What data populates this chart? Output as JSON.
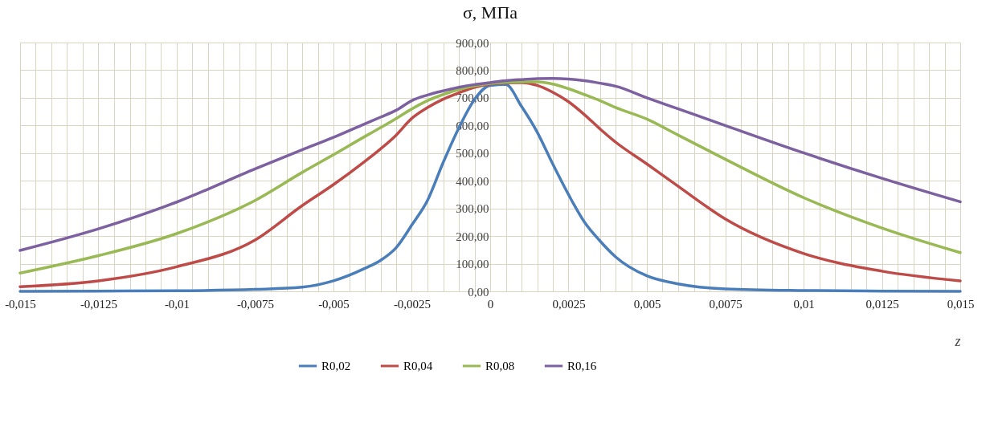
{
  "chart_data": {
    "type": "line",
    "title": "σ, МПа",
    "xlabel": "z",
    "xlim": [
      -0.015,
      0.015
    ],
    "ylim": [
      0,
      900
    ],
    "xticks": [
      {
        "value": -0.015,
        "label": "-0,015"
      },
      {
        "value": -0.0145,
        "label": null
      },
      {
        "value": -0.014,
        "label": null
      },
      {
        "value": -0.0135,
        "label": null
      },
      {
        "value": -0.013,
        "label": null
      },
      {
        "value": -0.0125,
        "label": "-0,0125"
      },
      {
        "value": -0.012,
        "label": null
      },
      {
        "value": -0.0115,
        "label": null
      },
      {
        "value": -0.011,
        "label": null
      },
      {
        "value": -0.0105,
        "label": null
      },
      {
        "value": -0.01,
        "label": "-0,01"
      },
      {
        "value": -0.0095,
        "label": null
      },
      {
        "value": -0.009,
        "label": null
      },
      {
        "value": -0.0085,
        "label": null
      },
      {
        "value": -0.008,
        "label": null
      },
      {
        "value": -0.0075,
        "label": "-0,0075"
      },
      {
        "value": -0.007,
        "label": null
      },
      {
        "value": -0.0065,
        "label": null
      },
      {
        "value": -0.006,
        "label": null
      },
      {
        "value": -0.0055,
        "label": null
      },
      {
        "value": -0.005,
        "label": "-0,005"
      },
      {
        "value": -0.0045,
        "label": null
      },
      {
        "value": -0.004,
        "label": null
      },
      {
        "value": -0.0035,
        "label": null
      },
      {
        "value": -0.003,
        "label": null
      },
      {
        "value": -0.0025,
        "label": "-0,0025"
      },
      {
        "value": -0.002,
        "label": null
      },
      {
        "value": -0.0015,
        "label": null
      },
      {
        "value": -0.001,
        "label": null
      },
      {
        "value": -0.0005,
        "label": null
      },
      0,
      {
        "value": 0.0005,
        "label": null
      },
      {
        "value": 0.001,
        "label": null
      },
      {
        "value": 0.0015,
        "label": null
      },
      {
        "value": 0.002,
        "label": null
      },
      {
        "value": 0.0025,
        "label": "0,0025"
      },
      {
        "value": 0.003,
        "label": null
      },
      {
        "value": 0.0035,
        "label": null
      },
      {
        "value": 0.004,
        "label": null
      },
      {
        "value": 0.0045,
        "label": null
      },
      {
        "value": 0.005,
        "label": "0,005"
      },
      {
        "value": 0.0055,
        "label": null
      },
      {
        "value": 0.006,
        "label": null
      },
      {
        "value": 0.0065,
        "label": null
      },
      {
        "value": 0.007,
        "label": null
      },
      {
        "value": 0.0075,
        "label": "0,0075"
      },
      {
        "value": 0.008,
        "label": null
      },
      {
        "value": 0.0085,
        "label": null
      },
      {
        "value": 0.009,
        "label": null
      },
      {
        "value": 0.0095,
        "label": null
      },
      {
        "value": 0.01,
        "label": "0,01"
      },
      {
        "value": 0.0105,
        "label": null
      },
      {
        "value": 0.011,
        "label": null
      },
      {
        "value": 0.0115,
        "label": null
      },
      {
        "value": 0.012,
        "label": null
      },
      {
        "value": 0.0125,
        "label": "0,0125"
      },
      {
        "value": 0.013,
        "label": null
      },
      {
        "value": 0.0135,
        "label": null
      },
      {
        "value": 0.014,
        "label": null
      },
      {
        "value": 0.0145,
        "label": null
      },
      {
        "value": 0.015,
        "label": "0,015"
      }
    ],
    "yticks": [
      {
        "value": 0,
        "label": "0,00"
      },
      {
        "value": 100,
        "label": "100,00"
      },
      {
        "value": 200,
        "label": "200,00"
      },
      {
        "value": 300,
        "label": "300,00"
      },
      {
        "value": 400,
        "label": "400,00"
      },
      {
        "value": 500,
        "label": "500,00"
      },
      {
        "value": 600,
        "label": "600,00"
      },
      {
        "value": 700,
        "label": "700,00"
      },
      {
        "value": 800,
        "label": "800,00"
      },
      {
        "value": 900,
        "label": "900,00"
      }
    ],
    "grid": true,
    "legend": "bottom",
    "line_style": "solid",
    "x": [
      -0.015,
      -0.0125,
      -0.01,
      -0.0075,
      -0.006,
      -0.005,
      -0.004,
      -0.0035,
      -0.003,
      -0.0025,
      -0.002,
      -0.0015,
      -0.001,
      -0.0005,
      0,
      0.0005,
      0.001,
      0.0015,
      0.002,
      0.0025,
      0.003,
      0.0035,
      0.004,
      0.005,
      0.006,
      0.0075,
      0.01,
      0.0125,
      0.015
    ],
    "series": [
      {
        "name": "R0,02",
        "color": "#4a7ebb",
        "values": [
          0,
          1,
          2,
          7,
          15,
          38,
          83,
          112,
          158,
          240,
          329,
          466,
          591,
          694,
          745,
          748,
          669,
          576,
          460,
          350,
          252,
          183,
          125,
          56,
          27,
          9,
          3,
          1,
          0
        ]
      },
      {
        "name": "R0,04",
        "color": "#be4b48",
        "values": [
          17,
          38,
          89,
          186,
          310,
          386,
          470,
          515,
          565,
          626,
          665,
          695,
          718,
          738,
          750,
          754,
          755,
          745,
          720,
          686,
          640,
          588,
          540,
          461,
          380,
          262,
          137,
          73,
          38
        ]
      },
      {
        "name": "R0,08",
        "color": "#98b954",
        "values": [
          66,
          129,
          209,
          329,
          430,
          494,
          560,
          592,
          625,
          660,
          690,
          712,
          730,
          743,
          752,
          756,
          758,
          758,
          750,
          733,
          712,
          690,
          665,
          623,
          565,
          478,
          339,
          229,
          140
        ]
      },
      {
        "name": "R0,16",
        "color": "#7d60a0",
        "values": [
          148,
          226,
          323,
          443,
          512,
          557,
          606,
          630,
          655,
          690,
          710,
          725,
          738,
          748,
          755,
          762,
          766,
          769,
          770,
          768,
          762,
          753,
          742,
          700,
          660,
          600,
          501,
          409,
          324
        ]
      }
    ]
  }
}
